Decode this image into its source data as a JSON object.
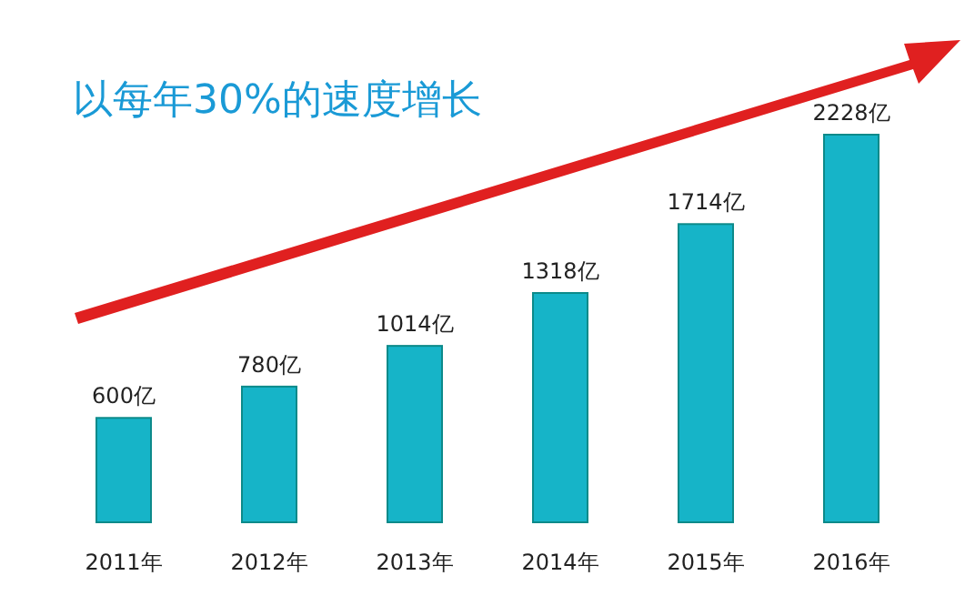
{
  "chart_data": {
    "type": "bar",
    "title": "以每年30%的速度增长",
    "categories": [
      "2011年",
      "2012年",
      "2013年",
      "2014年",
      "2015年",
      "2016年"
    ],
    "values": [
      600,
      780,
      1014,
      1318,
      1714,
      2228
    ],
    "value_labels": [
      "600亿",
      "780亿",
      "1014亿",
      "1318亿",
      "1714亿",
      "2228亿"
    ],
    "color": "#16b4c8"
  }
}
